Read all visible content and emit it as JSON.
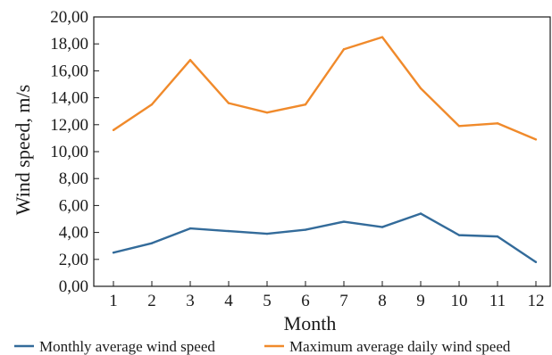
{
  "chart_data": {
    "type": "line",
    "x": [
      1,
      2,
      3,
      4,
      5,
      6,
      7,
      8,
      9,
      10,
      11,
      12
    ],
    "xlabel": "Month",
    "ylabel": "Wind speed, m/s",
    "ylim": [
      0,
      20
    ],
    "yticks": [
      "0,00",
      "2,00",
      "4,00",
      "6,00",
      "8,00",
      "10,00",
      "12,00",
      "14,00",
      "16,00",
      "18,00",
      "20,00"
    ],
    "grid": false,
    "legend_position": "bottom",
    "series": [
      {
        "name": "Monthly average wind speed",
        "color": "#336b9a",
        "values": [
          2.5,
          3.2,
          4.3,
          4.1,
          3.9,
          4.2,
          4.8,
          4.4,
          5.4,
          3.8,
          3.7,
          1.8
        ]
      },
      {
        "name": "Maximum average daily wind speed",
        "color": "#f08a2b",
        "values": [
          11.6,
          13.5,
          16.8,
          13.6,
          12.9,
          13.5,
          17.6,
          18.5,
          14.7,
          11.9,
          12.1,
          10.9
        ]
      }
    ]
  }
}
